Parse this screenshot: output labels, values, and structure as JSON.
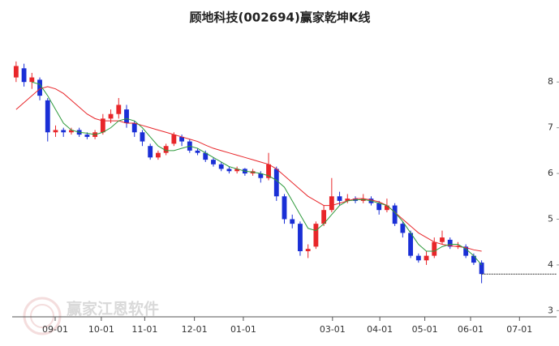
{
  "chart_data": {
    "type": "candlestick",
    "title": "顾地科技(002694)赢家乾坤K线",
    "watermark": "赢家江恩软件",
    "up_color": "#e8262a",
    "down_color": "#1a2fd6",
    "ylim": [
      2.9,
      8.5
    ],
    "yticks": [
      3,
      4,
      5,
      6,
      7,
      8
    ],
    "xlim": [
      -0.5,
      68.5
    ],
    "xticks": [
      {
        "value": 4.95,
        "label": "09-01"
      },
      {
        "value": 10.8,
        "label": "10-01"
      },
      {
        "value": 16.3,
        "label": "11-01"
      },
      {
        "value": 22.6,
        "label": "12-01"
      },
      {
        "value": 28.8,
        "label": "01-01"
      },
      {
        "value": 40.1,
        "label": "03-01"
      },
      {
        "value": 46.1,
        "label": "04-01"
      },
      {
        "value": 51.8,
        "label": "05-01"
      },
      {
        "value": 57.6,
        "label": "06-01"
      },
      {
        "value": 63.8,
        "label": "07-01"
      }
    ],
    "candles": [
      {
        "open": 8.1,
        "high": 8.45,
        "low": 8.0,
        "close": 8.35
      },
      {
        "open": 8.3,
        "high": 8.4,
        "low": 7.9,
        "close": 8.0
      },
      {
        "open": 8.0,
        "high": 8.2,
        "low": 7.85,
        "close": 8.1
      },
      {
        "open": 8.05,
        "high": 8.1,
        "low": 7.6,
        "close": 7.7
      },
      {
        "open": 7.6,
        "high": 7.65,
        "low": 6.7,
        "close": 6.9
      },
      {
        "open": 6.9,
        "high": 7.05,
        "low": 6.8,
        "close": 6.95
      },
      {
        "open": 6.95,
        "high": 7.0,
        "low": 6.8,
        "close": 6.9
      },
      {
        "open": 6.9,
        "high": 7.0,
        "low": 6.85,
        "close": 6.95
      },
      {
        "open": 6.95,
        "high": 7.0,
        "low": 6.8,
        "close": 6.85
      },
      {
        "open": 6.85,
        "high": 6.9,
        "low": 6.75,
        "close": 6.8
      },
      {
        "open": 6.8,
        "high": 6.95,
        "low": 6.75,
        "close": 6.9
      },
      {
        "open": 6.9,
        "high": 7.3,
        "low": 6.85,
        "close": 7.2
      },
      {
        "open": 7.2,
        "high": 7.4,
        "low": 7.1,
        "close": 7.3
      },
      {
        "open": 7.3,
        "high": 7.65,
        "low": 7.2,
        "close": 7.5
      },
      {
        "open": 7.4,
        "high": 7.5,
        "low": 7.0,
        "close": 7.1
      },
      {
        "open": 7.1,
        "high": 7.15,
        "low": 6.8,
        "close": 6.9
      },
      {
        "open": 6.9,
        "high": 6.95,
        "low": 6.6,
        "close": 6.7
      },
      {
        "open": 6.6,
        "high": 6.65,
        "low": 6.3,
        "close": 6.35
      },
      {
        "open": 6.35,
        "high": 6.5,
        "low": 6.3,
        "close": 6.45
      },
      {
        "open": 6.45,
        "high": 6.65,
        "low": 6.4,
        "close": 6.6
      },
      {
        "open": 6.65,
        "high": 6.9,
        "low": 6.6,
        "close": 6.85
      },
      {
        "open": 6.8,
        "high": 6.85,
        "low": 6.6,
        "close": 6.7
      },
      {
        "open": 6.7,
        "high": 6.75,
        "low": 6.45,
        "close": 6.5
      },
      {
        "open": 6.5,
        "high": 6.55,
        "low": 6.4,
        "close": 6.45
      },
      {
        "open": 6.45,
        "high": 6.5,
        "low": 6.25,
        "close": 6.3
      },
      {
        "open": 6.3,
        "high": 6.35,
        "low": 6.15,
        "close": 6.2
      },
      {
        "open": 6.2,
        "high": 6.25,
        "low": 6.05,
        "close": 6.1
      },
      {
        "open": 6.1,
        "high": 6.15,
        "low": 6.0,
        "close": 6.05
      },
      {
        "open": 6.05,
        "high": 6.15,
        "low": 6.0,
        "close": 6.1
      },
      {
        "open": 6.1,
        "high": 6.12,
        "low": 5.95,
        "close": 6.0
      },
      {
        "open": 6.0,
        "high": 6.1,
        "low": 5.95,
        "close": 6.05
      },
      {
        "open": 6.0,
        "high": 6.05,
        "low": 5.8,
        "close": 5.9
      },
      {
        "open": 5.9,
        "high": 6.45,
        "low": 5.85,
        "close": 6.2
      },
      {
        "open": 6.1,
        "high": 6.15,
        "low": 5.4,
        "close": 5.5
      },
      {
        "open": 5.5,
        "high": 5.55,
        "low": 4.9,
        "close": 5.0
      },
      {
        "open": 5.0,
        "high": 5.1,
        "low": 4.8,
        "close": 4.9
      },
      {
        "open": 4.9,
        "high": 4.95,
        "low": 4.2,
        "close": 4.3
      },
      {
        "open": 4.3,
        "high": 4.45,
        "low": 4.15,
        "close": 4.35
      },
      {
        "open": 4.4,
        "high": 4.95,
        "low": 4.35,
        "close": 4.9
      },
      {
        "open": 4.9,
        "high": 5.3,
        "low": 4.85,
        "close": 5.2
      },
      {
        "open": 5.2,
        "high": 5.9,
        "low": 5.15,
        "close": 5.5
      },
      {
        "open": 5.5,
        "high": 5.6,
        "low": 5.3,
        "close": 5.4
      },
      {
        "open": 5.4,
        "high": 5.55,
        "low": 5.35,
        "close": 5.45
      },
      {
        "open": 5.45,
        "high": 5.5,
        "low": 5.35,
        "close": 5.4
      },
      {
        "open": 5.4,
        "high": 5.55,
        "low": 5.35,
        "close": 5.45
      },
      {
        "open": 5.45,
        "high": 5.5,
        "low": 5.3,
        "close": 5.35
      },
      {
        "open": 5.35,
        "high": 5.4,
        "low": 5.1,
        "close": 5.2
      },
      {
        "open": 5.2,
        "high": 5.45,
        "low": 5.15,
        "close": 5.3
      },
      {
        "open": 5.3,
        "high": 5.35,
        "low": 4.85,
        "close": 4.9
      },
      {
        "open": 4.9,
        "high": 4.95,
        "low": 4.6,
        "close": 4.7
      },
      {
        "open": 4.7,
        "high": 4.75,
        "low": 4.15,
        "close": 4.2
      },
      {
        "open": 4.2,
        "high": 4.25,
        "low": 4.05,
        "close": 4.1
      },
      {
        "open": 4.1,
        "high": 4.3,
        "low": 4.0,
        "close": 4.2
      },
      {
        "open": 4.2,
        "high": 4.6,
        "low": 4.15,
        "close": 4.5
      },
      {
        "open": 4.5,
        "high": 4.75,
        "low": 4.45,
        "close": 4.6
      },
      {
        "open": 4.55,
        "high": 4.6,
        "low": 4.35,
        "close": 4.4
      },
      {
        "open": 4.4,
        "high": 4.5,
        "low": 4.35,
        "close": 4.42
      },
      {
        "open": 4.4,
        "high": 4.45,
        "low": 4.15,
        "close": 4.2
      },
      {
        "open": 4.2,
        "high": 4.25,
        "low": 4.0,
        "close": 4.05
      },
      {
        "open": 4.05,
        "high": 4.1,
        "low": 3.6,
        "close": 3.8
      }
    ],
    "lines": [
      {
        "color": "#e8262a",
        "values": [
          7.4,
          7.55,
          7.7,
          7.85,
          7.9,
          7.85,
          7.75,
          7.6,
          7.45,
          7.3,
          7.2,
          7.15,
          7.15,
          7.15,
          7.1,
          7.1,
          7.05,
          7.0,
          6.95,
          6.9,
          6.85,
          6.8,
          6.75,
          6.7,
          6.62,
          6.55,
          6.5,
          6.45,
          6.4,
          6.35,
          6.3,
          6.25,
          6.2,
          6.1,
          5.95,
          5.8,
          5.65,
          5.5,
          5.4,
          5.3,
          5.3,
          5.35,
          5.4,
          5.45,
          5.45,
          5.42,
          5.38,
          5.3,
          5.15,
          5.0,
          4.85,
          4.7,
          4.6,
          4.5,
          4.45,
          4.42,
          4.4,
          4.38,
          4.33,
          4.3
        ]
      },
      {
        "color": "#2e9a3c",
        "values": [
          null,
          null,
          8.0,
          7.95,
          7.7,
          7.4,
          7.1,
          6.95,
          6.9,
          6.88,
          6.85,
          6.9,
          7.0,
          7.15,
          7.2,
          7.15,
          7.0,
          6.8,
          6.6,
          6.5,
          6.5,
          6.55,
          6.6,
          6.55,
          6.45,
          6.35,
          6.25,
          6.15,
          6.1,
          6.05,
          6.03,
          6.0,
          5.95,
          5.85,
          5.7,
          5.4,
          5.1,
          4.8,
          4.75,
          4.9,
          5.1,
          5.3,
          5.4,
          5.42,
          5.43,
          5.4,
          5.35,
          5.3,
          5.15,
          4.95,
          4.7,
          4.45,
          4.3,
          4.3,
          4.4,
          4.45,
          4.45,
          4.35,
          4.2,
          4.0
        ]
      }
    ]
  }
}
